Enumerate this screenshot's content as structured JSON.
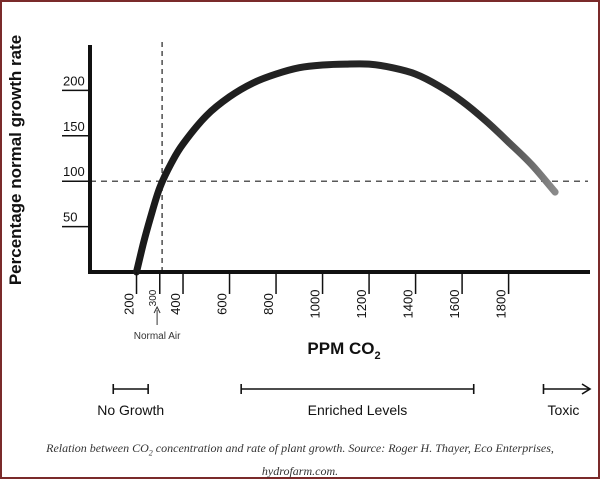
{
  "chart_data": {
    "type": "line",
    "ylabel": "Percentage normal growth rate",
    "xlabel_main": "PPM CO",
    "xlabel_sub": "2",
    "x_ticks": [
      {
        "label": "200",
        "value": 200
      },
      {
        "label": "300",
        "value": 300,
        "rotated": true
      },
      {
        "label": "400",
        "value": 400
      },
      {
        "label": "600",
        "value": 600
      },
      {
        "label": "800",
        "value": 800
      },
      {
        "label": "1000",
        "value": 1000
      },
      {
        "label": "1200",
        "value": 1200
      },
      {
        "label": "1400",
        "value": 1400
      },
      {
        "label": "1600",
        "value": 1600
      },
      {
        "label": "1800",
        "value": 1800
      }
    ],
    "y_ticks": [
      {
        "label": "50",
        "value": 50
      },
      {
        "label": "100",
        "value": 100
      },
      {
        "label": "150",
        "value": 150
      },
      {
        "label": "200",
        "value": 200
      }
    ],
    "series": [
      {
        "x": [
          200,
          230,
          260,
          300,
          350,
          400,
          500,
          600,
          700,
          800,
          900,
          1000,
          1100,
          1200,
          1300,
          1400,
          1500,
          1600,
          1700,
          1800,
          1900,
          2000
        ],
        "y": [
          0,
          32,
          60,
          93,
          120,
          141,
          172,
          193,
          208,
          218,
          225,
          228,
          229,
          229,
          225,
          218,
          205,
          188,
          167,
          143,
          118,
          88
        ]
      }
    ],
    "reference_lines": [
      {
        "axis": "x",
        "value": 310,
        "style": "dashed"
      },
      {
        "axis": "y",
        "value": 100,
        "style": "dashed"
      }
    ],
    "annotation": {
      "label": "Normal Air",
      "x": 310
    },
    "ranges": [
      {
        "label": "No Growth",
        "from": 100,
        "to": 250,
        "arrow": false
      },
      {
        "label": "Enriched Levels",
        "from": 650,
        "to": 1650,
        "arrow": false
      },
      {
        "label": "Toxic",
        "from": 1950,
        "to": 2150,
        "arrow": true
      }
    ],
    "xlim": [
      0,
      2150
    ],
    "ylim": [
      0,
      250
    ],
    "grid": false,
    "colors": {
      "curve": "#1a1a1a",
      "curve_end": "#8a8a8a",
      "axis": "#111111",
      "border": "#7a2a2a"
    }
  },
  "caption": {
    "part1": "Relation between CO",
    "sub": "2",
    "part2": " concentration and rate of plant growth. Source: Roger H. Thayer, Eco Enterprises, hydrofarm.com."
  }
}
